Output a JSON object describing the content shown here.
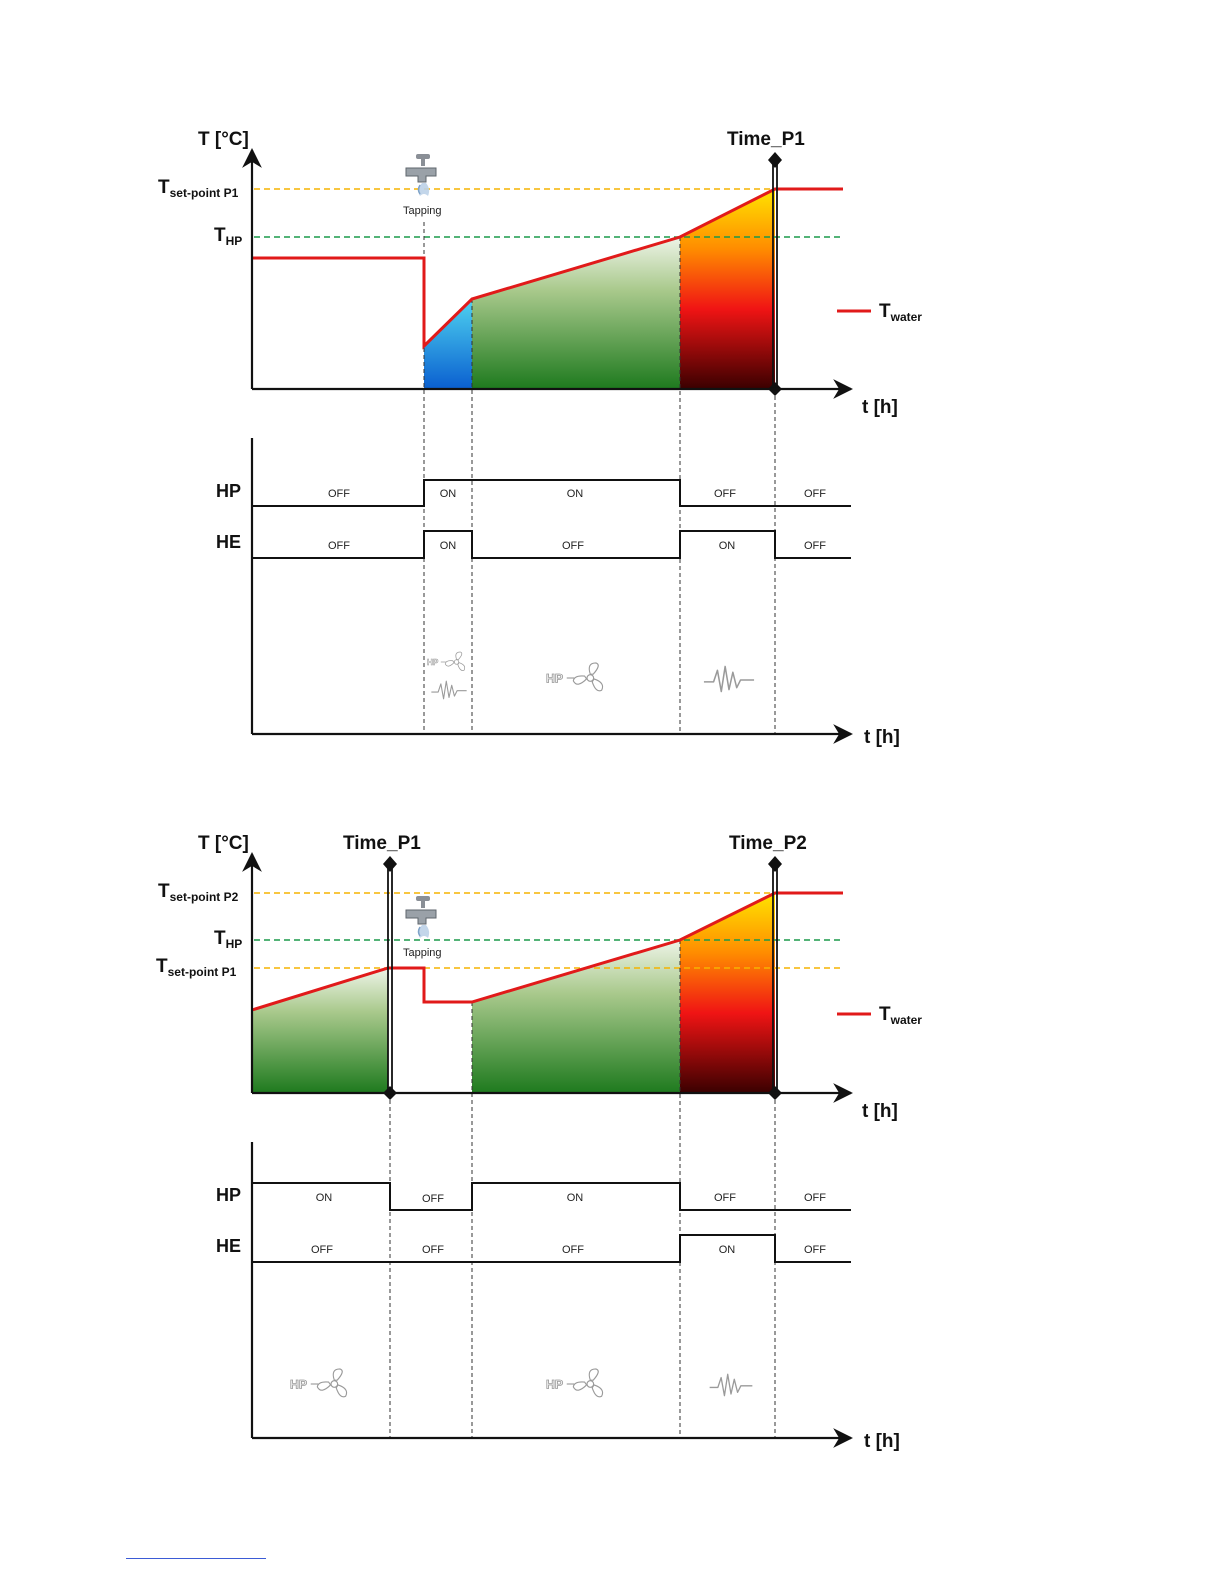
{
  "colors": {
    "water_line": "#e11a1a",
    "setpoint_line": "#f5b400",
    "hp_line": "#1a9a4a",
    "signal_line": "#111111",
    "tapping_fill": [
      "#4fd3f0",
      "#0a5fd0"
    ],
    "hp_fill": [
      "#e6efe0",
      "#1e7a1e"
    ],
    "he_fill": [
      "#ffe000",
      "#ff7a00",
      "#f01010",
      "#3a0000"
    ]
  },
  "icons": [
    "tap-icon",
    "heat-pump-fan-icon",
    "heating-element-icon"
  ],
  "panels": [
    {
      "temp": {
        "y_axis_label": "T [°C]",
        "x_axis_label": "t [h]",
        "time_marker": "Time_P1",
        "setpoint_label": {
          "main": "T",
          "sub": "set-point P1"
        },
        "hp_label": {
          "main": "T",
          "sub": "HP"
        },
        "tapping_label": "Tapping",
        "legend": {
          "main": "T",
          "sub": "water"
        }
      },
      "signals": {
        "x_axis_label": "t [h]",
        "hp_row_label": "HP",
        "he_row_label": "HE",
        "hp_states": [
          "OFF",
          "ON",
          "ON",
          "OFF",
          "OFF"
        ],
        "he_states": [
          "OFF",
          "ON",
          "OFF",
          "ON",
          "OFF"
        ]
      }
    },
    {
      "temp": {
        "y_axis_label": "T [°C]",
        "x_axis_label": "t [h]",
        "time_marker_1": "Time_P1",
        "time_marker_2": "Time_P2",
        "setpoint2_label": {
          "main": "T",
          "sub": "set-point P2"
        },
        "hp_label": {
          "main": "T",
          "sub": "HP"
        },
        "setpoint1_label": {
          "main": "T",
          "sub": "set-point P1"
        },
        "tapping_label": "Tapping",
        "legend": {
          "main": "T",
          "sub": "water"
        }
      },
      "signals": {
        "x_axis_label": "t [h]",
        "hp_row_label": "HP",
        "he_row_label": "HE",
        "hp_states": [
          "ON",
          "OFF",
          "ON",
          "OFF",
          "OFF"
        ],
        "he_states": [
          "OFF",
          "OFF",
          "OFF",
          "ON",
          "OFF"
        ]
      }
    }
  ]
}
